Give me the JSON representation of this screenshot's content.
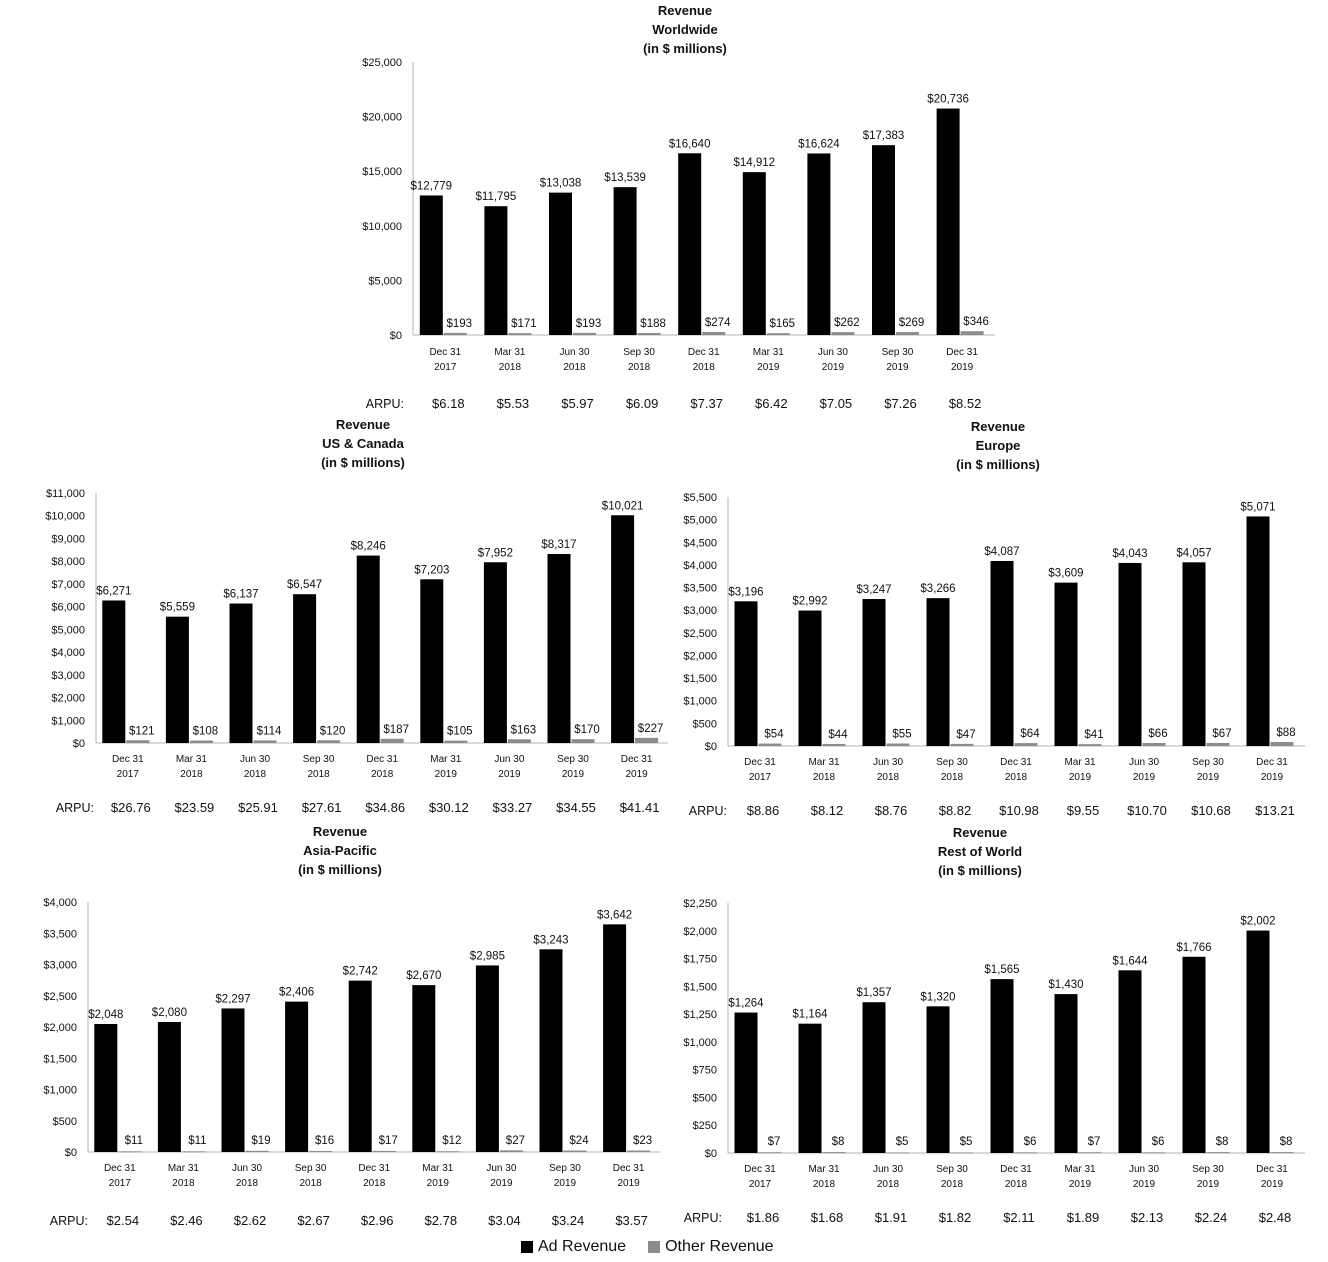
{
  "legend": {
    "ad": "Ad Revenue",
    "other": "Other Revenue"
  },
  "colors": {
    "ad": "#000000",
    "other": "#8c8c8c",
    "axis": "#b3b3b3"
  },
  "arpu_label": "ARPU:",
  "chart_data": [
    {
      "type": "bar",
      "title": [
        "Revenue",
        "Worldwide",
        "(in $ millions)"
      ],
      "categories": [
        "Dec 31\n2017",
        "Mar 31\n2018",
        "Jun 30\n2018",
        "Sep 30\n2018",
        "Dec 31\n2018",
        "Mar 31\n2019",
        "Jun 30\n2019",
        "Sep 30\n2019",
        "Dec 31\n2019"
      ],
      "series": [
        {
          "name": "Ad Revenue",
          "values": [
            12779,
            11795,
            13038,
            13539,
            16640,
            14912,
            16624,
            17383,
            20736
          ],
          "labels": [
            "$12,779",
            "$11,795",
            "$13,038",
            "$13,539",
            "$16,640",
            "$14,912",
            "$16,624",
            "$17,383",
            "$20,736"
          ]
        },
        {
          "name": "Other Revenue",
          "values": [
            193,
            171,
            193,
            188,
            274,
            165,
            262,
            269,
            346
          ],
          "labels": [
            "$193",
            "$171",
            "$193",
            "$188",
            "$274",
            "$165",
            "$262",
            "$269",
            "$346"
          ]
        }
      ],
      "ylim": [
        0,
        25000
      ],
      "yticks": [
        "$0",
        "$5,000",
        "$10,000",
        "$15,000",
        "$20,000",
        "$25,000"
      ],
      "arpu": [
        "$6.18",
        "$5.53",
        "$5.97",
        "$6.09",
        "$7.37",
        "$6.42",
        "$7.05",
        "$7.26",
        "$8.52"
      ],
      "legend": "bottom-center"
    },
    {
      "type": "bar",
      "title": [
        "Revenue",
        "US & Canada",
        "(in $ millions)"
      ],
      "categories": [
        "Dec 31\n2017",
        "Mar 31\n2018",
        "Jun 30\n2018",
        "Sep 30\n2018",
        "Dec 31\n2018",
        "Mar 31\n2019",
        "Jun 30\n2019",
        "Sep 30\n2019",
        "Dec 31\n2019"
      ],
      "series": [
        {
          "name": "Ad Revenue",
          "values": [
            6271,
            5559,
            6137,
            6547,
            8246,
            7203,
            7952,
            8317,
            10021
          ],
          "labels": [
            "$6,271",
            "$5,559",
            "$6,137",
            "$6,547",
            "$8,246",
            "$7,203",
            "$7,952",
            "$8,317",
            "$10,021"
          ]
        },
        {
          "name": "Other Revenue",
          "values": [
            121,
            108,
            114,
            120,
            187,
            105,
            163,
            170,
            227
          ],
          "labels": [
            "$121",
            "$108",
            "$114",
            "$120",
            "$187",
            "$105",
            "$163",
            "$170",
            "$227"
          ]
        }
      ],
      "ylim": [
        0,
        11000
      ],
      "yticks": [
        "$0",
        "$1,000",
        "$2,000",
        "$3,000",
        "$4,000",
        "$5,000",
        "$6,000",
        "$7,000",
        "$8,000",
        "$9,000",
        "$10,000",
        "$11,000"
      ],
      "arpu": [
        "$26.76",
        "$23.59",
        "$25.91",
        "$27.61",
        "$34.86",
        "$30.12",
        "$33.27",
        "$34.55",
        "$41.41"
      ]
    },
    {
      "type": "bar",
      "title": [
        "Revenue",
        "Europe",
        "(in $ millions)"
      ],
      "categories": [
        "Dec 31\n2017",
        "Mar 31\n2018",
        "Jun 30\n2018",
        "Sep 30\n2018",
        "Dec 31\n2018",
        "Mar 31\n2019",
        "Jun 30\n2019",
        "Sep 30\n2019",
        "Dec 31\n2019"
      ],
      "series": [
        {
          "name": "Ad Revenue",
          "values": [
            3196,
            2992,
            3247,
            3266,
            4087,
            3609,
            4043,
            4057,
            5071
          ],
          "labels": [
            "$3,196",
            "$2,992",
            "$3,247",
            "$3,266",
            "$4,087",
            "$3,609",
            "$4,043",
            "$4,057",
            "$5,071"
          ]
        },
        {
          "name": "Other Revenue",
          "values": [
            54,
            44,
            55,
            47,
            64,
            41,
            66,
            67,
            88
          ],
          "labels": [
            "$54",
            "$44",
            "$55",
            "$47",
            "$64",
            "$41",
            "$66",
            "$67",
            "$88"
          ]
        }
      ],
      "ylim": [
        0,
        5500
      ],
      "yticks": [
        "$0",
        "$500",
        "$1,000",
        "$1,500",
        "$2,000",
        "$2,500",
        "$3,000",
        "$3,500",
        "$4,000",
        "$4,500",
        "$5,000",
        "$5,500"
      ],
      "arpu": [
        "$8.86",
        "$8.12",
        "$8.76",
        "$8.82",
        "$10.98",
        "$9.55",
        "$10.70",
        "$10.68",
        "$13.21"
      ]
    },
    {
      "type": "bar",
      "title": [
        "Revenue",
        "Asia-Pacific",
        "(in $ millions)"
      ],
      "categories": [
        "Dec 31\n2017",
        "Mar 31\n2018",
        "Jun 30\n2018",
        "Sep 30\n2018",
        "Dec 31\n2018",
        "Mar 31\n2019",
        "Jun 30\n2019",
        "Sep 30\n2019",
        "Dec 31\n2019"
      ],
      "series": [
        {
          "name": "Ad Revenue",
          "values": [
            2048,
            2080,
            2297,
            2406,
            2742,
            2670,
            2985,
            3243,
            3642
          ],
          "labels": [
            "$2,048",
            "$2,080",
            "$2,297",
            "$2,406",
            "$2,742",
            "$2,670",
            "$2,985",
            "$3,243",
            "$3,642"
          ]
        },
        {
          "name": "Other Revenue",
          "values": [
            11,
            11,
            19,
            16,
            17,
            12,
            27,
            24,
            23
          ],
          "labels": [
            "$11",
            "$11",
            "$19",
            "$16",
            "$17",
            "$12",
            "$27",
            "$24",
            "$23"
          ]
        }
      ],
      "ylim": [
        0,
        4000
      ],
      "yticks": [
        "$0",
        "$500",
        "$1,000",
        "$1,500",
        "$2,000",
        "$2,500",
        "$3,000",
        "$3,500",
        "$4,000"
      ],
      "arpu": [
        "$2.54",
        "$2.46",
        "$2.62",
        "$2.67",
        "$2.96",
        "$2.78",
        "$3.04",
        "$3.24",
        "$3.57"
      ]
    },
    {
      "type": "bar",
      "title": [
        "Revenue",
        "Rest of World",
        "(in $ millions)"
      ],
      "categories": [
        "Dec 31\n2017",
        "Mar 31\n2018",
        "Jun 30\n2018",
        "Sep 30\n2018",
        "Dec 31\n2018",
        "Mar 31\n2019",
        "Jun 30\n2019",
        "Sep 30\n2019",
        "Dec 31\n2019"
      ],
      "series": [
        {
          "name": "Ad Revenue",
          "values": [
            1264,
            1164,
            1357,
            1320,
            1565,
            1430,
            1644,
            1766,
            2002
          ],
          "labels": [
            "$1,264",
            "$1,164",
            "$1,357",
            "$1,320",
            "$1,565",
            "$1,430",
            "$1,644",
            "$1,766",
            "$2,002"
          ]
        },
        {
          "name": "Other Revenue",
          "values": [
            7,
            8,
            5,
            5,
            6,
            7,
            6,
            8,
            8
          ],
          "labels": [
            "$7",
            "$8",
            "$5",
            "$5",
            "$6",
            "$7",
            "$6",
            "$8",
            "$8"
          ]
        }
      ],
      "ylim": [
        0,
        2250
      ],
      "yticks": [
        "$0",
        "$250",
        "$500",
        "$750",
        "$1,000",
        "$1,250",
        "$1,500",
        "$1,750",
        "$2,000",
        "$2,250"
      ],
      "arpu": [
        "$1.86",
        "$1.68",
        "$1.91",
        "$1.82",
        "$2.11",
        "$1.89",
        "$2.13",
        "$2.24",
        "$2.48"
      ]
    }
  ]
}
